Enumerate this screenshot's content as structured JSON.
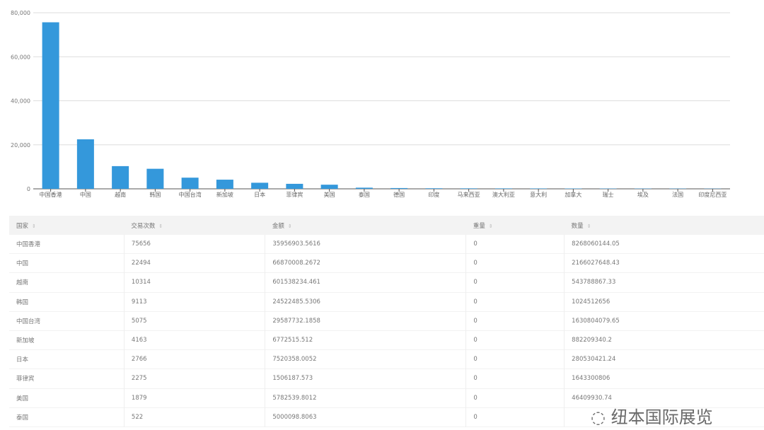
{
  "chart_data": {
    "type": "bar",
    "categories": [
      "中国香港",
      "中国",
      "越南",
      "韩国",
      "中国台湾",
      "新加坡",
      "日本",
      "菲律宾",
      "美国",
      "泰国",
      "德国",
      "印度",
      "马来西亚",
      "澳大利亚",
      "意大利",
      "加拿大",
      "瑞士",
      "埃及",
      "法国",
      "印度尼西亚"
    ],
    "values": [
      75656,
      22494,
      10314,
      9113,
      5075,
      4163,
      2766,
      2275,
      1879,
      522,
      350,
      250,
      220,
      200,
      180,
      160,
      140,
      130,
      120,
      100
    ],
    "ylim": [
      0,
      80000
    ],
    "yticks": [
      "0",
      "20,000",
      "40,000",
      "60,000",
      "80,000"
    ],
    "grid": true,
    "color": "#3498db"
  },
  "table": {
    "headers": [
      "国家",
      "交易次数",
      "金额",
      "重量",
      "数量"
    ],
    "rows": [
      [
        "中国香港",
        "75656",
        "35956903.5616",
        "0",
        "8268060144.05"
      ],
      [
        "中国",
        "22494",
        "66870008.2672",
        "0",
        "2166027648.43"
      ],
      [
        "越南",
        "10314",
        "601538234.461",
        "0",
        "543788867.33"
      ],
      [
        "韩国",
        "9113",
        "24522485.5306",
        "0",
        "1024512656"
      ],
      [
        "中国台湾",
        "5075",
        "29587732.1858",
        "0",
        "1630804079.65"
      ],
      [
        "新加坡",
        "4163",
        "6772515.512",
        "0",
        "882209340.2"
      ],
      [
        "日本",
        "2766",
        "7520358.0052",
        "0",
        "280530421.24"
      ],
      [
        "菲律宾",
        "2275",
        "1506187.573",
        "0",
        "1643300806"
      ],
      [
        "美国",
        "1879",
        "5782539.8012",
        "0",
        "46409930.74"
      ],
      [
        "泰国",
        "522",
        "5000098.8063",
        "0",
        ""
      ]
    ]
  },
  "watermark": "纽本国际展览"
}
